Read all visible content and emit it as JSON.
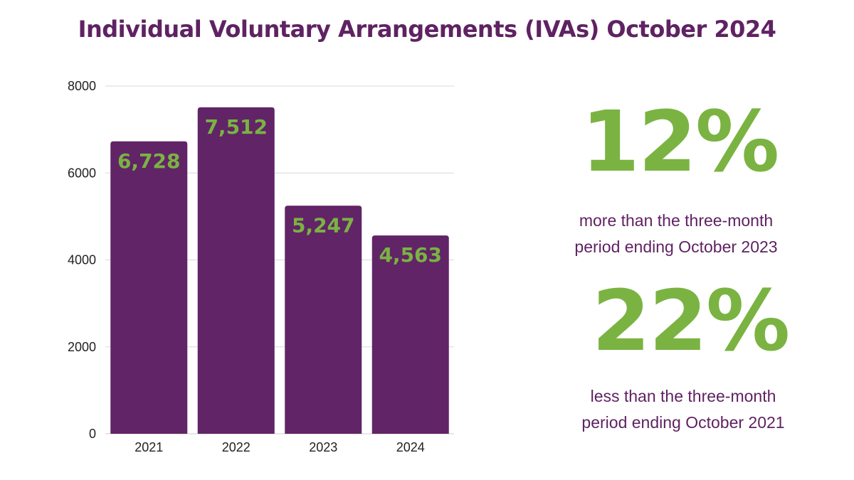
{
  "title": "Individual Voluntary Arrangements (IVAs) October 2024",
  "colors": {
    "title": "#5f2262",
    "bar": "#612466",
    "bar_label": "#7ab342",
    "stat_big": "#7ab342",
    "stat_text": "#5f2262",
    "grid": "#d9d9d9",
    "axis_text": "#222222"
  },
  "chart_data": {
    "type": "bar",
    "title": "",
    "xlabel": "",
    "ylabel": "",
    "categories": [
      "2021",
      "2022",
      "2023",
      "2024"
    ],
    "values": [
      6728,
      7512,
      5247,
      4563
    ],
    "data_labels": [
      "6,728",
      "7,512",
      "5,247",
      "4,563"
    ],
    "ylim": [
      0,
      8000
    ],
    "yticks": [
      0,
      2000,
      4000,
      6000,
      8000
    ],
    "ytick_labels": [
      "0",
      "2000",
      "4000",
      "6000",
      "8000"
    ],
    "grid": true,
    "legend": "none"
  },
  "stats": [
    {
      "value": "12%",
      "text_line1": "more than the three-month",
      "text_line2": "period ending October 2023"
    },
    {
      "value": "22%",
      "text_line1": "less than the three-month",
      "text_line2": "period ending October 2021"
    }
  ]
}
